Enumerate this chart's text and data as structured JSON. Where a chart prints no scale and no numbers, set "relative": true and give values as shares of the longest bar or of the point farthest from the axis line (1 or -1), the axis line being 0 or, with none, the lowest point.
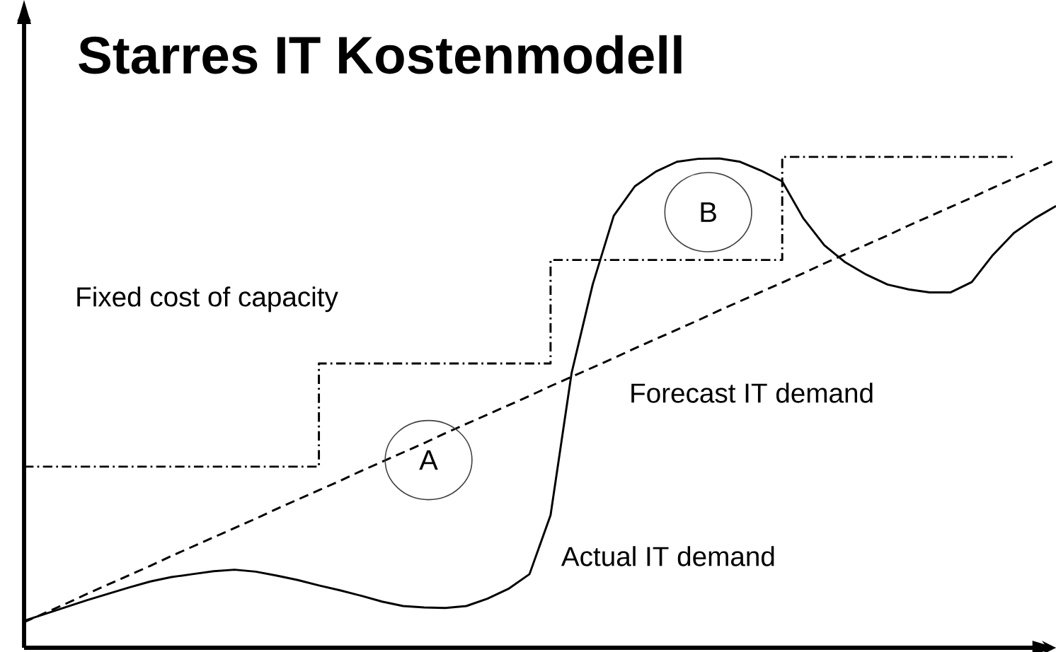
{
  "chart_data": {
    "type": "line",
    "title": "Starres  IT Kostenmodell",
    "relative": true,
    "categories": [
      null,
      null,
      null,
      null,
      null,
      null,
      null,
      null,
      null,
      null,
      null,
      null,
      null,
      null,
      null,
      null,
      null,
      null,
      null,
      null,
      null,
      null,
      null,
      null,
      null,
      null,
      null,
      null,
      null,
      null,
      null,
      null,
      null,
      null,
      null,
      null,
      null,
      null,
      null,
      null,
      null,
      null,
      null,
      null,
      null,
      null,
      null,
      null,
      null,
      null
    ],
    "series": [
      {
        "name": "Fixed cost of capacity",
        "type": "step",
        "color": "#000000",
        "line_style": "dashdot",
        "values": [
          0.369,
          0.369,
          0.369,
          0.369,
          0.369,
          0.369,
          0.369,
          0.369,
          0.369,
          0.369,
          0.369,
          0.369,
          0.369,
          0.369,
          0.579,
          0.579,
          0.579,
          0.579,
          0.579,
          0.579,
          0.579,
          0.579,
          0.579,
          0.579,
          0.579,
          0.79,
          0.79,
          0.79,
          0.79,
          0.79,
          0.79,
          0.79,
          0.79,
          0.79,
          0.79,
          0.79,
          1.0,
          1.0,
          1.0,
          1.0,
          1.0,
          1.0,
          1.0,
          1.0,
          1.0,
          1.0,
          1.0,
          1.0,
          null,
          null
        ]
      },
      {
        "name": "Forecast IT demand",
        "color": "#000000",
        "line_style": "dashed",
        "values": [
          0.052,
          0.071,
          0.09,
          0.11,
          0.129,
          0.148,
          0.167,
          0.187,
          0.206,
          0.225,
          0.244,
          0.263,
          0.283,
          0.302,
          0.321,
          0.34,
          0.36,
          0.379,
          0.398,
          0.417,
          0.437,
          0.456,
          0.475,
          0.494,
          0.513,
          0.533,
          0.552,
          0.571,
          0.59,
          0.61,
          0.629,
          0.648,
          0.667,
          0.687,
          0.706,
          0.725,
          0.744,
          0.763,
          0.783,
          0.802,
          0.821,
          0.84,
          0.86,
          0.879,
          0.898,
          0.917,
          0.937,
          0.956,
          0.975,
          0.994
        ]
      },
      {
        "name": "Actual IT demand",
        "color": "#000000",
        "line_style": "solid",
        "values": [
          0.055,
          0.069,
          0.083,
          0.097,
          0.11,
          0.123,
          0.135,
          0.144,
          0.15,
          0.156,
          0.159,
          0.155,
          0.147,
          0.138,
          0.127,
          0.117,
          0.106,
          0.094,
          0.085,
          0.082,
          0.081,
          0.085,
          0.1,
          0.12,
          0.15,
          0.27,
          0.56,
          0.74,
          0.88,
          0.94,
          0.97,
          0.99,
          0.996,
          0.997,
          0.99,
          0.972,
          0.95,
          0.875,
          0.82,
          0.785,
          0.76,
          0.74,
          0.73,
          0.724,
          0.724,
          0.745,
          0.8,
          0.845,
          0.875,
          0.9
        ]
      }
    ],
    "annotations": [
      "A",
      "B"
    ]
  }
}
